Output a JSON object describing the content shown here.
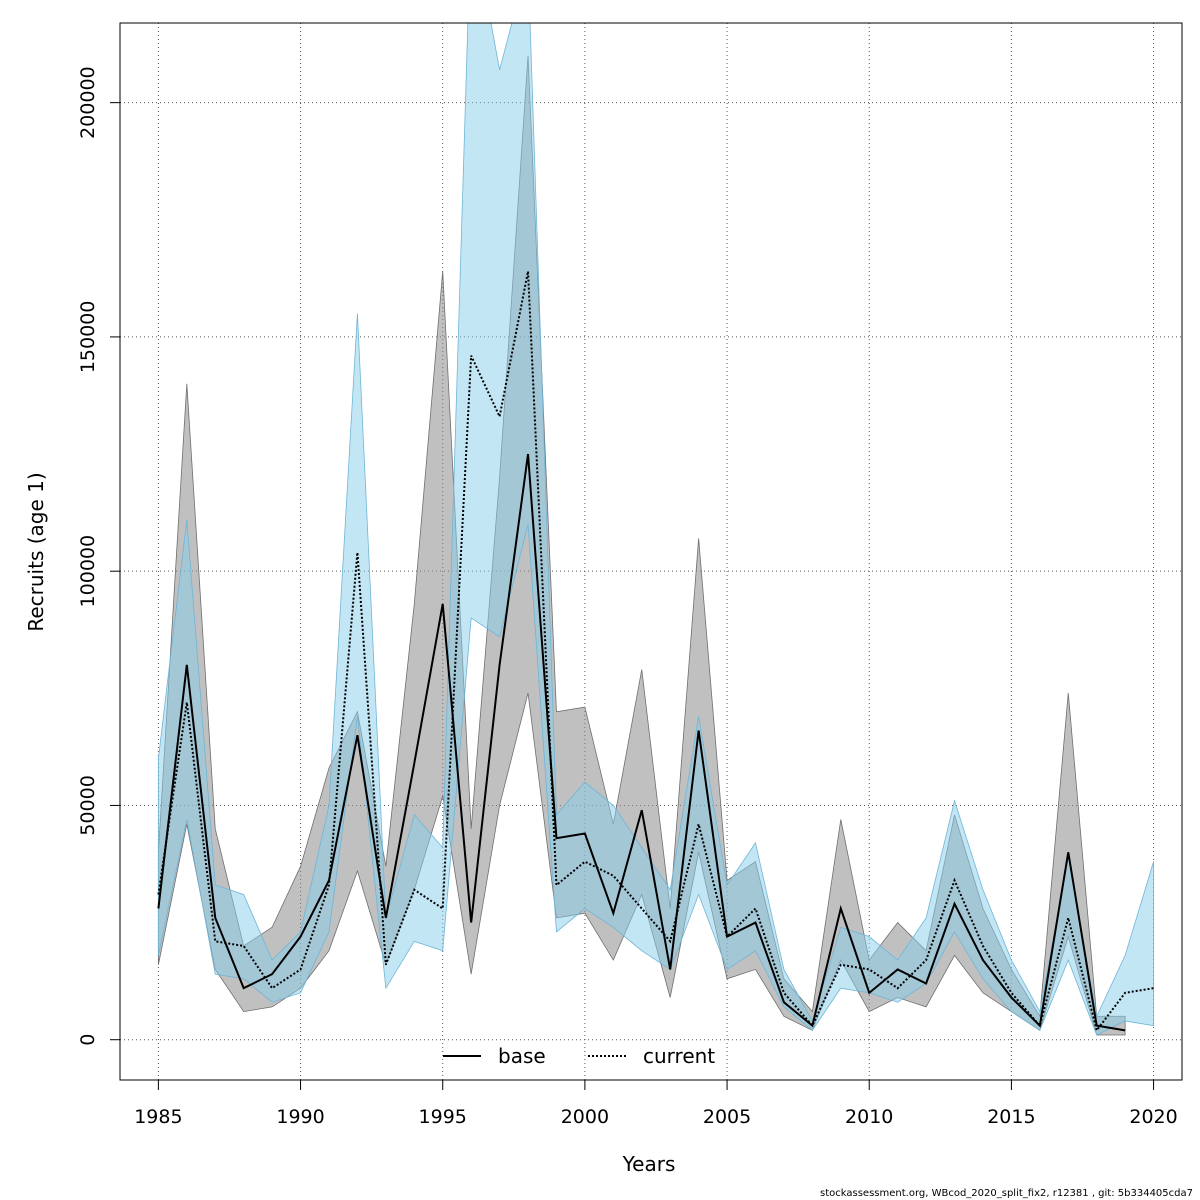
{
  "chart_data": {
    "type": "line",
    "xlabel": "Years",
    "ylabel": "Recruits (age 1)",
    "xlim": [
      1983.65,
      2021.0
    ],
    "ylim": [
      -8600,
      217000
    ],
    "x_ticks": [
      1985,
      1990,
      1995,
      2000,
      2005,
      2010,
      2015,
      2020
    ],
    "y_ticks": [
      0,
      50000,
      100000,
      150000,
      200000
    ],
    "grid": true,
    "legend_position": "bottom-center",
    "series": [
      {
        "name": "base",
        "line_style": "solid",
        "line_color": "#000000",
        "band_color": "#8c8c8c",
        "x": [
          1985,
          1986,
          1987,
          1988,
          1989,
          1990,
          1991,
          1992,
          1993,
          1994,
          1995,
          1996,
          1997,
          1998,
          1999,
          2000,
          2001,
          2002,
          2003,
          2004,
          2005,
          2006,
          2007,
          2008,
          2009,
          2010,
          2011,
          2012,
          2013,
          2014,
          2015,
          2016,
          2017,
          2018,
          2019
        ],
        "values": [
          28000,
          80000,
          26000,
          11000,
          14000,
          22000,
          34000,
          65000,
          26000,
          59000,
          93000,
          25000,
          80000,
          125000,
          43000,
          44000,
          27000,
          49000,
          15000,
          66000,
          22000,
          25000,
          8000,
          3000,
          28000,
          10000,
          15000,
          12000,
          29000,
          17000,
          9000,
          3000,
          40000,
          3000,
          2000
        ],
        "upper": [
          40000,
          140000,
          45000,
          20000,
          24000,
          37000,
          58000,
          70000,
          37000,
          93000,
          164000,
          45000,
          120000,
          210000,
          70000,
          71000,
          46000,
          79000,
          28000,
          107000,
          34000,
          38000,
          13000,
          6000,
          47000,
          17000,
          25000,
          19000,
          48000,
          28000,
          15000,
          5000,
          74000,
          5000,
          5000
        ],
        "lower": [
          16000,
          46000,
          15000,
          6000,
          7000,
          11000,
          19000,
          36000,
          16000,
          32000,
          52000,
          14000,
          50000,
          74000,
          26000,
          27000,
          17000,
          31000,
          9000,
          40000,
          13000,
          15000,
          5000,
          2000,
          17000,
          6000,
          9000,
          7000,
          18000,
          10000,
          6000,
          2000,
          22000,
          1000,
          1000
        ]
      },
      {
        "name": "current",
        "line_style": "dotted",
        "line_color": "#000000",
        "band_color": "#87ceeb",
        "x": [
          1985,
          1986,
          1987,
          1988,
          1989,
          1990,
          1991,
          1992,
          1993,
          1994,
          1995,
          1996,
          1997,
          1998,
          1999,
          2000,
          2001,
          2002,
          2003,
          2004,
          2005,
          2006,
          2007,
          2008,
          2009,
          2010,
          2011,
          2012,
          2013,
          2014,
          2015,
          2016,
          2017,
          2018,
          2019,
          2020
        ],
        "values": [
          31000,
          72000,
          21000,
          20000,
          11000,
          15000,
          33000,
          104000,
          16000,
          32000,
          28000,
          146000,
          133000,
          164000,
          33000,
          38000,
          35000,
          28000,
          21000,
          46000,
          22000,
          28000,
          10000,
          3000,
          16000,
          15000,
          11000,
          17000,
          34000,
          20000,
          10000,
          3000,
          26000,
          2000,
          10000,
          11000
        ],
        "upper": [
          60000,
          111000,
          33000,
          31000,
          17000,
          23000,
          50000,
          155000,
          26000,
          48000,
          41000,
          240000,
          207000,
          230000,
          48000,
          55000,
          50000,
          41000,
          32000,
          69000,
          33000,
          42000,
          15000,
          4000,
          24000,
          22000,
          17000,
          26000,
          51000,
          32000,
          17000,
          6000,
          39000,
          5000,
          18000,
          38000
        ],
        "lower": [
          18000,
          47000,
          14000,
          13000,
          8000,
          10000,
          23000,
          69000,
          11000,
          21000,
          19000,
          90000,
          86000,
          110000,
          23000,
          28000,
          24000,
          19000,
          15000,
          31000,
          15000,
          19000,
          7000,
          2000,
          11000,
          10000,
          8000,
          12000,
          23000,
          13000,
          6000,
          2000,
          17000,
          1000,
          4000,
          3000
        ]
      }
    ]
  },
  "credit": "stockassessment.org, WBcod_2020_split_fix2, r12381 , git: 5b334405cda7"
}
